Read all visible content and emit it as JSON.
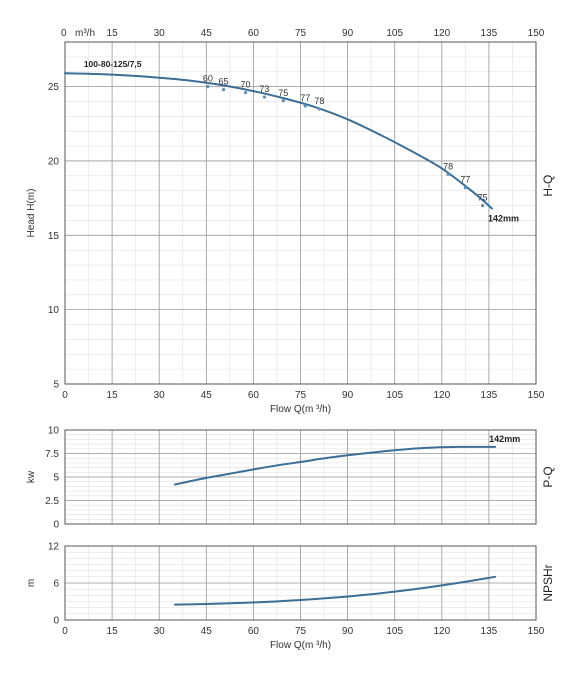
{
  "chart_data": [
    {
      "id": "hq",
      "type": "line",
      "xlabel": "Flow Q(m ³/h)",
      "top_axis_unit": "m³/h",
      "ylabel": "Head H(m)",
      "side_label": "H-Q",
      "xlim": [
        0,
        150
      ],
      "ylim": [
        5,
        28
      ],
      "x_ticks": [
        0,
        15,
        30,
        45,
        60,
        75,
        90,
        105,
        120,
        135,
        150
      ],
      "y_ticks": [
        5,
        10,
        15,
        20,
        25
      ],
      "series": [
        {
          "name": "100-80-125/7,5",
          "x": [
            0,
            10,
            20,
            30,
            40,
            50,
            60,
            70,
            80,
            90,
            100,
            110,
            120,
            130,
            136
          ],
          "y": [
            25.9,
            25.85,
            25.75,
            25.6,
            25.4,
            25.1,
            24.7,
            24.2,
            23.6,
            22.8,
            21.8,
            20.7,
            19.5,
            17.9,
            16.8
          ]
        }
      ],
      "curve_label": "142mm",
      "efficiency_labels": [
        {
          "label": "60",
          "x": 45.5,
          "y": 25.2
        },
        {
          "label": "65",
          "x": 50.5,
          "y": 25.0
        },
        {
          "label": "70",
          "x": 57.5,
          "y": 24.8
        },
        {
          "label": "73",
          "x": 63.5,
          "y": 24.5
        },
        {
          "label": "75",
          "x": 69.5,
          "y": 24.25
        },
        {
          "label": "77",
          "x": 76.5,
          "y": 23.9
        },
        {
          "label": "78",
          "x": 81,
          "y": 23.7
        },
        {
          "label": "78",
          "x": 122,
          "y": 19.3
        },
        {
          "label": "77",
          "x": 127.5,
          "y": 18.4
        },
        {
          "label": "75",
          "x": 133,
          "y": 17.2
        }
      ]
    },
    {
      "id": "pq",
      "type": "line",
      "ylabel": "kw",
      "side_label": "P-Q",
      "xlim": [
        0,
        150
      ],
      "ylim": [
        0,
        10
      ],
      "y_ticks": [
        0,
        2.5,
        5,
        7.5,
        10
      ],
      "y_tick_labels": [
        "0",
        "2.5",
        "5",
        "7.5",
        "10"
      ],
      "series": [
        {
          "x": [
            35,
            45,
            55,
            65,
            75,
            85,
            95,
            105,
            115,
            125,
            137
          ],
          "y": [
            4.2,
            4.9,
            5.5,
            6.1,
            6.6,
            7.1,
            7.5,
            7.85,
            8.1,
            8.2,
            8.2
          ]
        }
      ],
      "curve_label": "142mm"
    },
    {
      "id": "npsh",
      "type": "line",
      "xlabel": "Flow Q(m ³/h)",
      "ylabel": "m",
      "side_label": "NPSHr",
      "xlim": [
        0,
        150
      ],
      "ylim": [
        0,
        12
      ],
      "x_ticks": [
        0,
        15,
        30,
        45,
        60,
        75,
        90,
        105,
        120,
        135,
        150
      ],
      "y_ticks": [
        0,
        6,
        12
      ],
      "series": [
        {
          "x": [
            35,
            45,
            55,
            65,
            75,
            85,
            95,
            105,
            115,
            125,
            137
          ],
          "y": [
            2.5,
            2.6,
            2.75,
            2.95,
            3.25,
            3.6,
            4.05,
            4.6,
            5.25,
            6.0,
            7.0
          ]
        }
      ]
    }
  ]
}
